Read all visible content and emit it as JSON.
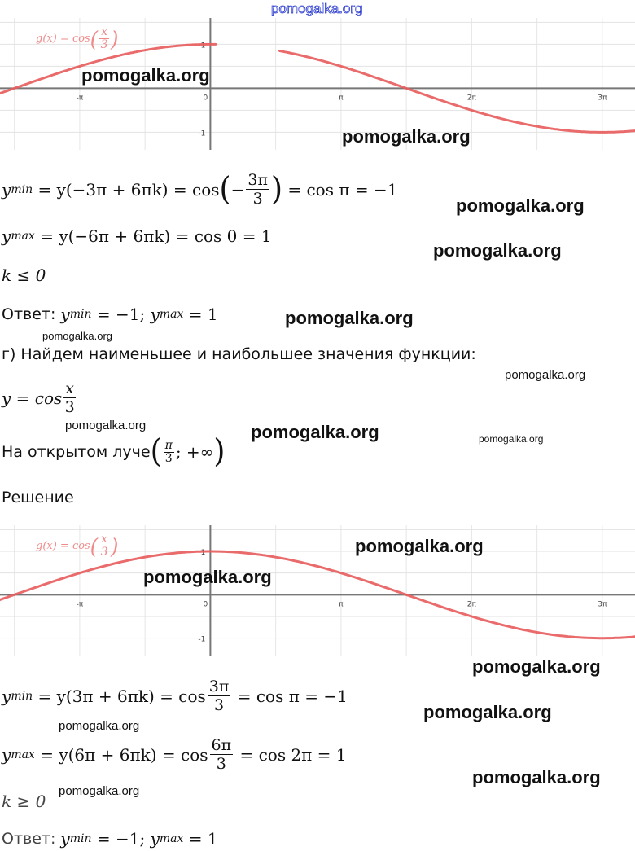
{
  "header_watermark": "pomogalka.org",
  "watermark": "pomogalka.org",
  "graph_label": {
    "lhs": "g(x) = cos",
    "num": "x",
    "den": "3"
  },
  "chart_data": [
    {
      "type": "line",
      "function": "g(x) = cos(x/3)",
      "x_ticks": [
        "-π",
        "0",
        "π",
        "2π",
        "3π"
      ],
      "y_ticks": [
        "1",
        "-1"
      ],
      "xlim_pi": [
        -1.61,
        3.25
      ],
      "ylim": [
        -1.4,
        1.6
      ],
      "grid": true,
      "color": "#e85b5b",
      "gap_pi": [
        0.04,
        0.53
      ]
    },
    {
      "type": "line",
      "function": "g(x) = cos(x/3)",
      "x_ticks": [
        "-π",
        "0",
        "π",
        "2π",
        "3π"
      ],
      "y_ticks": [
        "1",
        "-1"
      ],
      "xlim_pi": [
        -1.61,
        3.25
      ],
      "ylim": [
        -1.4,
        1.6
      ],
      "grid": true,
      "color": "#e85b5b"
    }
  ],
  "part_v": {
    "ymin": {
      "y": "y",
      "sub": "min",
      "eq1": " = y(−3π + 6πk) = cos",
      "inner_sign": "−",
      "num": "3π",
      "den": "3",
      "eq2": " = cos π = −1"
    },
    "ymax": {
      "y": "y",
      "sub": "max",
      "eq": " = y(−6π + 6πk) = cos 0 = 1"
    },
    "k": "k ≤ 0",
    "answer": {
      "label": "Ответ: ",
      "y1": "y",
      "sub1": "min",
      "v1": " = −1; ",
      "y2": "y",
      "sub2": "max",
      "v2": " = 1"
    }
  },
  "part_g": {
    "heading": "г) Найдем наименьшее и наибольшее значения функции:",
    "func": {
      "lhs": "y = cos",
      "num": "x",
      "den": "3"
    },
    "interval": {
      "text": "На открытом луче",
      "num": "π",
      "den": "3",
      "rest": "; +∞"
    },
    "solution": "Решение",
    "ymin": {
      "y": "y",
      "sub": "min",
      "eq1": " = y(3π + 6πk) = cos",
      "num": "3π",
      "den": "3",
      "eq2": " = cos π = −1"
    },
    "ymax": {
      "y": "y",
      "sub": "max",
      "eq1": " = y(6π + 6πk) = cos",
      "num": "6π",
      "den": "3",
      "eq2": " = cos 2π = 1"
    },
    "k": "k ≥ 0",
    "answer": {
      "label": "Ответ: ",
      "y1": "y",
      "sub1": "min",
      "v1": " = −1; ",
      "y2": "y",
      "sub2": "max",
      "v2": " = 1"
    }
  }
}
